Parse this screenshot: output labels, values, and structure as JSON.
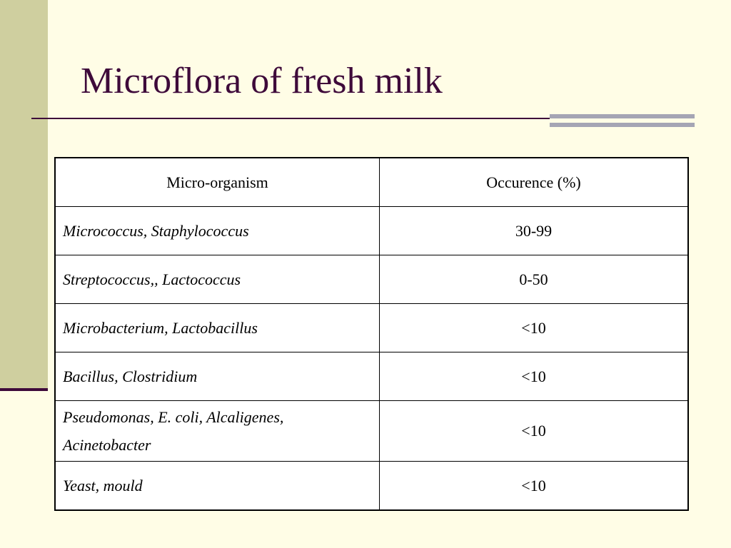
{
  "slide": {
    "title": "Microflora of fresh milk"
  },
  "table": {
    "headers": [
      "Micro-organism",
      "Occurence (%)"
    ],
    "rows": [
      {
        "organism": "Micrococcus, Staphylococcus",
        "occurrence": "30-99"
      },
      {
        "organism": "Streptococcus,, Lactococcus",
        "occurrence": "0-50"
      },
      {
        "organism": "Microbacterium, Lactobacillus",
        "occurrence": "<10"
      },
      {
        "organism": "Bacillus, Clostridium",
        "occurrence": "<10"
      },
      {
        "organism": "Pseudomonas, E. coli, Alcaligenes, Acinetobacter",
        "occurrence": "<10"
      },
      {
        "organism": "Yeast, mould",
        "occurrence": "<10"
      }
    ]
  },
  "colors": {
    "background": "#fffde6",
    "sidebar": "#cfcf9f",
    "title": "#3e0a3a",
    "accent": "#a5a5b4"
  }
}
